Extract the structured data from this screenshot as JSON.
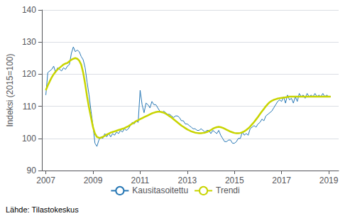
{
  "chart_data": {
    "type": "line",
    "ylabel": "Indeksi (2015=100)",
    "annotations": [
      "Lähde: Tilastokeskus"
    ],
    "xlim": [
      2006.83,
      2019.42
    ],
    "xticks": [
      2007,
      2009,
      2011,
      2013,
      2015,
      2017,
      2019
    ],
    "ylim": [
      90,
      140
    ],
    "yticks": [
      90,
      100,
      110,
      120,
      130,
      140
    ],
    "grid": true,
    "legend": "bottom",
    "x": [
      2007,
      2007.0833333333333,
      2007.1666666666667,
      2007.25,
      2007.3333333333333,
      2007.4166666666667,
      2007.5,
      2007.5833333333333,
      2007.6666666666667,
      2007.75,
      2007.8333333333333,
      2007.9166666666667,
      2008,
      2008.0833333333333,
      2008.1666666666667,
      2008.25,
      2008.3333333333333,
      2008.4166666666667,
      2008.5,
      2008.5833333333333,
      2008.6666666666667,
      2008.75,
      2008.8333333333333,
      2008.9166666666667,
      2009,
      2009.0833333333333,
      2009.1666666666667,
      2009.25,
      2009.3333333333333,
      2009.4166666666667,
      2009.5,
      2009.5833333333333,
      2009.6666666666667,
      2009.75,
      2009.8333333333333,
      2009.9166666666667,
      2010,
      2010.0833333333333,
      2010.1666666666667,
      2010.25,
      2010.3333333333333,
      2010.4166666666667,
      2010.5,
      2010.5833333333333,
      2010.6666666666667,
      2010.75,
      2010.8333333333333,
      2010.9166666666667,
      2011,
      2011.0833333333333,
      2011.1666666666667,
      2011.25,
      2011.3333333333333,
      2011.4166666666667,
      2011.5,
      2011.5833333333333,
      2011.6666666666667,
      2011.75,
      2011.8333333333333,
      2011.9166666666667,
      2012,
      2012.0833333333333,
      2012.1666666666667,
      2012.25,
      2012.3333333333333,
      2012.4166666666667,
      2012.5,
      2012.5833333333333,
      2012.6666666666667,
      2012.75,
      2012.8333333333333,
      2012.9166666666667,
      2013,
      2013.0833333333333,
      2013.1666666666667,
      2013.25,
      2013.3333333333333,
      2013.4166666666667,
      2013.5,
      2013.5833333333333,
      2013.6666666666667,
      2013.75,
      2013.8333333333333,
      2013.9166666666667,
      2014,
      2014.0833333333333,
      2014.1666666666667,
      2014.25,
      2014.3333333333333,
      2014.4166666666667,
      2014.5,
      2014.5833333333333,
      2014.6666666666667,
      2014.75,
      2014.8333333333333,
      2014.9166666666667,
      2015,
      2015.0833333333333,
      2015.1666666666667,
      2015.25,
      2015.3333333333333,
      2015.4166666666667,
      2015.5,
      2015.5833333333333,
      2015.6666666666667,
      2015.75,
      2015.8333333333333,
      2015.9166666666667,
      2016,
      2016.0833333333333,
      2016.1666666666667,
      2016.25,
      2016.3333333333333,
      2016.4166666666667,
      2016.5,
      2016.5833333333333,
      2016.6666666666667,
      2016.75,
      2016.8333333333333,
      2016.9166666666667,
      2017,
      2017.0833333333333,
      2017.1666666666667,
      2017.25,
      2017.3333333333333,
      2017.4166666666667,
      2017.5,
      2017.5833333333333,
      2017.6666666666667,
      2017.75,
      2017.8333333333333,
      2017.9166666666667,
      2018,
      2018.0833333333333,
      2018.1666666666667,
      2018.25,
      2018.3333333333333,
      2018.4166666666667,
      2018.5,
      2018.5833333333333,
      2018.6666666666667,
      2018.75,
      2018.8333333333333,
      2018.9166666666667,
      2019,
      2019.0833333333333
    ],
    "series": [
      {
        "name": "Kausitasoitettu",
        "color": "#2878b5",
        "values": [
          113.5,
          120.5,
          121.0,
          121.5,
          122.5,
          120.5,
          122.0,
          121.5,
          121.0,
          122.0,
          121.5,
          122.5,
          123.0,
          126.5,
          128.5,
          127.0,
          127.5,
          127.0,
          125.5,
          124.5,
          122.0,
          117.5,
          113.5,
          108.5,
          104.0,
          98.5,
          97.5,
          99.5,
          100.5,
          100.0,
          101.5,
          100.5,
          101.5,
          100.5,
          101.5,
          101.0,
          102.0,
          101.5,
          102.5,
          102.0,
          103.0,
          102.5,
          103.0,
          104.0,
          105.0,
          104.5,
          105.5,
          105.0,
          115.0,
          110.5,
          108.0,
          111.0,
          110.5,
          109.5,
          111.5,
          110.5,
          110.5,
          109.5,
          108.5,
          108.0,
          108.5,
          108.0,
          107.5,
          107.5,
          107.0,
          106.5,
          107.0,
          107.0,
          106.5,
          105.5,
          105.5,
          104.5,
          104.5,
          104.0,
          103.5,
          103.0,
          103.0,
          102.5,
          102.5,
          103.0,
          102.5,
          102.0,
          102.5,
          102.5,
          101.5,
          102.5,
          102.0,
          101.5,
          102.5,
          101.0,
          100.0,
          99.0,
          99.0,
          99.5,
          99.5,
          98.5,
          98.5,
          99.0,
          100.0,
          100.0,
          102.0,
          101.0,
          101.5,
          101.0,
          103.0,
          103.5,
          104.0,
          103.5,
          104.5,
          105.0,
          106.0,
          105.5,
          107.0,
          107.5,
          108.0,
          108.5,
          109.5,
          110.5,
          111.5,
          112.0,
          111.5,
          113.0,
          111.0,
          113.5,
          112.0,
          112.5,
          111.0,
          113.0,
          111.5,
          114.0,
          113.0,
          113.5,
          112.5,
          114.0,
          113.0,
          113.5,
          113.0,
          114.0,
          113.0,
          113.5,
          113.0,
          114.0,
          113.0,
          113.5,
          113.0,
          113.0
        ]
      },
      {
        "name": "Trendi",
        "color": "#c8d400",
        "values": [
          115.0,
          116.5,
          117.8,
          119.0,
          120.0,
          120.8,
          121.5,
          122.0,
          122.5,
          123.0,
          123.3,
          123.5,
          124.0,
          124.5,
          124.8,
          125.0,
          124.8,
          124.2,
          123.0,
          120.5,
          117.0,
          113.0,
          109.5,
          106.5,
          103.5,
          101.5,
          100.5,
          100.2,
          100.2,
          100.5,
          100.8,
          101.2,
          101.5,
          101.8,
          102.0,
          102.2,
          102.4,
          102.6,
          102.8,
          103.0,
          103.2,
          103.5,
          103.8,
          104.2,
          104.6,
          105.0,
          105.4,
          105.7,
          106.0,
          106.3,
          106.6,
          106.9,
          107.2,
          107.5,
          107.8,
          108.0,
          108.2,
          108.3,
          108.3,
          108.2,
          108.0,
          107.7,
          107.3,
          106.9,
          106.5,
          106.0,
          105.5,
          105.0,
          104.5,
          104.0,
          103.6,
          103.2,
          102.8,
          102.5,
          102.2,
          102.0,
          101.8,
          101.7,
          101.6,
          101.6,
          101.7,
          101.8,
          102.0,
          102.3,
          102.6,
          103.0,
          103.3,
          103.5,
          103.6,
          103.5,
          103.3,
          103.0,
          102.7,
          102.4,
          102.1,
          101.9,
          101.7,
          101.6,
          101.6,
          101.7,
          101.9,
          102.2,
          102.6,
          103.1,
          103.7,
          104.4,
          105.1,
          105.9,
          106.7,
          107.6,
          108.4,
          109.2,
          110.0,
          110.7,
          111.3,
          111.7,
          112.0,
          112.2,
          112.4,
          112.5,
          112.6,
          112.7,
          112.8,
          112.9,
          113.0,
          113.0,
          113.0,
          113.0,
          113.0,
          113.0,
          113.0,
          113.0,
          113.0,
          113.0,
          113.0,
          113.0,
          113.0,
          113.0,
          113.0,
          113.0,
          113.0,
          113.0,
          113.0,
          113.0,
          113.0,
          113.0
        ]
      }
    ]
  }
}
